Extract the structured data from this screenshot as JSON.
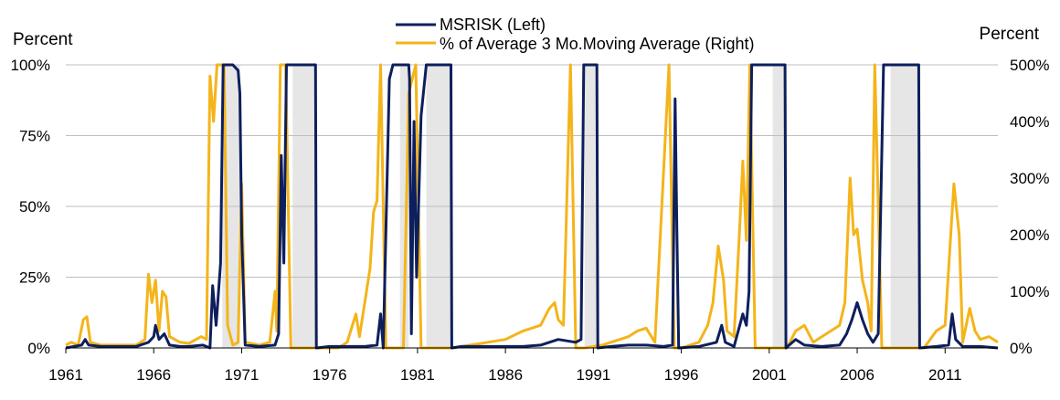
{
  "chart_data": {
    "type": "line",
    "left_axis_unit": "Percent",
    "right_axis_unit": "Percent",
    "left_ylim": [
      0,
      100
    ],
    "right_ylim": [
      0,
      500
    ],
    "left_ticks": [
      "0%",
      "25%",
      "50%",
      "75%",
      "100%"
    ],
    "right_ticks": [
      "0%",
      "100%",
      "200%",
      "300%",
      "400%",
      "500%"
    ],
    "x_range": [
      1961,
      2014
    ],
    "x_ticks": [
      "1961",
      "1966",
      "1971",
      "1976",
      "1981",
      "1986",
      "1991",
      "1996",
      "2001",
      "2006",
      "2011"
    ],
    "grid": "horizontal",
    "legend_position": "top-center",
    "recession_shading": [
      [
        1969.9,
        1970.9
      ],
      [
        1973.9,
        1975.2
      ],
      [
        1980.0,
        1980.5
      ],
      [
        1981.5,
        1982.9
      ],
      [
        1990.5,
        1991.2
      ],
      [
        2001.2,
        2001.9
      ],
      [
        2007.9,
        2009.5
      ]
    ],
    "colors": {
      "msrisk": "#0d1f5c",
      "avg": "#f4b41a",
      "shade": "#e6e6e6",
      "grid": "#bfbfbf"
    },
    "series": [
      {
        "name": "MSRISK (Left)",
        "axis": "left",
        "points": [
          [
            1961,
            0
          ],
          [
            1961.9,
            1
          ],
          [
            1962.1,
            3
          ],
          [
            1962.3,
            1
          ],
          [
            1963,
            0.5
          ],
          [
            1964,
            0.5
          ],
          [
            1965,
            0.5
          ],
          [
            1965.7,
            2
          ],
          [
            1966.0,
            4
          ],
          [
            1966.1,
            8
          ],
          [
            1966.3,
            3
          ],
          [
            1966.6,
            5
          ],
          [
            1966.9,
            1
          ],
          [
            1967.5,
            0.5
          ],
          [
            1968,
            0.5
          ],
          [
            1968.8,
            1
          ],
          [
            1969.2,
            0
          ],
          [
            1969.35,
            22
          ],
          [
            1969.55,
            8
          ],
          [
            1969.8,
            30
          ],
          [
            1969.95,
            100
          ],
          [
            1970.5,
            100
          ],
          [
            1970.8,
            98
          ],
          [
            1970.9,
            90
          ],
          [
            1971.0,
            40
          ],
          [
            1971.2,
            1
          ],
          [
            1972,
            0.5
          ],
          [
            1972.9,
            1
          ],
          [
            1973.1,
            5
          ],
          [
            1973.25,
            68
          ],
          [
            1973.4,
            30
          ],
          [
            1973.55,
            100
          ],
          [
            1974.5,
            100
          ],
          [
            1975.2,
            100
          ],
          [
            1975.25,
            0
          ],
          [
            1976,
            0.5
          ],
          [
            1977,
            0.5
          ],
          [
            1978,
            0.5
          ],
          [
            1978.7,
            1
          ],
          [
            1978.9,
            12
          ],
          [
            1979.05,
            0
          ],
          [
            1979.4,
            95
          ],
          [
            1979.6,
            100
          ],
          [
            1980.5,
            100
          ],
          [
            1980.55,
            95
          ],
          [
            1980.65,
            5
          ],
          [
            1980.8,
            80
          ],
          [
            1980.95,
            25
          ],
          [
            1981.2,
            82
          ],
          [
            1981.5,
            100
          ],
          [
            1982.9,
            100
          ],
          [
            1982.95,
            0
          ],
          [
            1983.5,
            0.5
          ],
          [
            1985,
            0.5
          ],
          [
            1987,
            0.5
          ],
          [
            1988,
            1
          ],
          [
            1989,
            3
          ],
          [
            1990.0,
            2
          ],
          [
            1990.3,
            3
          ],
          [
            1990.45,
            100
          ],
          [
            1991.2,
            100
          ],
          [
            1991.25,
            0
          ],
          [
            1992,
            0.5
          ],
          [
            1993,
            1
          ],
          [
            1994,
            1
          ],
          [
            1995,
            0.5
          ],
          [
            1995.5,
            1
          ],
          [
            1995.65,
            88
          ],
          [
            1995.75,
            40
          ],
          [
            1995.85,
            0
          ],
          [
            1997,
            0.5
          ],
          [
            1998,
            2
          ],
          [
            1998.3,
            8
          ],
          [
            1998.5,
            2
          ],
          [
            1999,
            0.5
          ],
          [
            1999.5,
            12
          ],
          [
            1999.7,
            8
          ],
          [
            1999.85,
            20
          ],
          [
            2000.0,
            100
          ],
          [
            2001.9,
            100
          ],
          [
            2001.95,
            0
          ],
          [
            2002.5,
            3
          ],
          [
            2003,
            1
          ],
          [
            2004,
            0.5
          ],
          [
            2005,
            1
          ],
          [
            2005.4,
            5
          ],
          [
            2005.7,
            10
          ],
          [
            2006.0,
            16
          ],
          [
            2006.3,
            10
          ],
          [
            2006.6,
            5
          ],
          [
            2006.9,
            2
          ],
          [
            2007.2,
            5
          ],
          [
            2007.5,
            100
          ],
          [
            2009.5,
            100
          ],
          [
            2009.55,
            0
          ],
          [
            2010.5,
            0.5
          ],
          [
            2011.2,
            1
          ],
          [
            2011.4,
            12
          ],
          [
            2011.6,
            3
          ],
          [
            2012,
            0.5
          ],
          [
            2013,
            0.5
          ],
          [
            2014,
            0
          ]
        ]
      },
      {
        "name": "% of Average 3 Mo.Moving Average (Right)",
        "axis": "right",
        "points": [
          [
            1961,
            5
          ],
          [
            1961.3,
            10
          ],
          [
            1961.7,
            5
          ],
          [
            1962.0,
            50
          ],
          [
            1962.2,
            55
          ],
          [
            1962.4,
            10
          ],
          [
            1963,
            5
          ],
          [
            1964,
            5
          ],
          [
            1965,
            5
          ],
          [
            1965.5,
            15
          ],
          [
            1965.7,
            130
          ],
          [
            1965.9,
            80
          ],
          [
            1966.1,
            120
          ],
          [
            1966.3,
            30
          ],
          [
            1966.5,
            100
          ],
          [
            1966.7,
            90
          ],
          [
            1966.9,
            20
          ],
          [
            1967.5,
            10
          ],
          [
            1968,
            8
          ],
          [
            1968.7,
            20
          ],
          [
            1969.0,
            15
          ],
          [
            1969.2,
            480
          ],
          [
            1969.4,
            400
          ],
          [
            1969.6,
            500
          ],
          [
            1970.0,
            500
          ],
          [
            1970.2,
            40
          ],
          [
            1970.5,
            5
          ],
          [
            1970.8,
            10
          ],
          [
            1971.0,
            290
          ],
          [
            1971.2,
            10
          ],
          [
            1972,
            5
          ],
          [
            1972.6,
            10
          ],
          [
            1972.9,
            100
          ],
          [
            1973.0,
            30
          ],
          [
            1973.2,
            500
          ],
          [
            1973.5,
            500
          ],
          [
            1973.8,
            0
          ],
          [
            1974.5,
            0
          ],
          [
            1976.5,
            0
          ],
          [
            1977,
            10
          ],
          [
            1977.5,
            60
          ],
          [
            1977.7,
            20
          ],
          [
            1978.3,
            140
          ],
          [
            1978.5,
            240
          ],
          [
            1978.7,
            260
          ],
          [
            1978.9,
            500
          ],
          [
            1979.2,
            0
          ],
          [
            1980.2,
            0
          ],
          [
            1980.5,
            450
          ],
          [
            1980.9,
            500
          ],
          [
            1981.2,
            0
          ],
          [
            1983,
            0
          ],
          [
            1984,
            5
          ],
          [
            1985,
            10
          ],
          [
            1986,
            15
          ],
          [
            1987,
            30
          ],
          [
            1988,
            40
          ],
          [
            1988.5,
            70
          ],
          [
            1988.8,
            80
          ],
          [
            1989,
            50
          ],
          [
            1989.3,
            40
          ],
          [
            1989.7,
            500
          ],
          [
            1990.0,
            0
          ],
          [
            1990.5,
            0
          ],
          [
            1991.5,
            5
          ],
          [
            1992,
            10
          ],
          [
            1993,
            20
          ],
          [
            1993.5,
            30
          ],
          [
            1994,
            35
          ],
          [
            1994.5,
            10
          ],
          [
            1995.3,
            500
          ],
          [
            1995.6,
            0
          ],
          [
            1996,
            0
          ],
          [
            1997,
            10
          ],
          [
            1997.5,
            40
          ],
          [
            1997.8,
            80
          ],
          [
            1998.1,
            180
          ],
          [
            1998.4,
            120
          ],
          [
            1998.6,
            30
          ],
          [
            1999.0,
            20
          ],
          [
            1999.3,
            200
          ],
          [
            1999.5,
            330
          ],
          [
            1999.7,
            190
          ],
          [
            1999.9,
            500
          ],
          [
            2000.2,
            0
          ],
          [
            2002,
            0
          ],
          [
            2002.5,
            30
          ],
          [
            2003,
            40
          ],
          [
            2003.5,
            10
          ],
          [
            2004.5,
            30
          ],
          [
            2005,
            40
          ],
          [
            2005.3,
            80
          ],
          [
            2005.6,
            300
          ],
          [
            2005.8,
            200
          ],
          [
            2006.0,
            210
          ],
          [
            2006.3,
            120
          ],
          [
            2006.6,
            80
          ],
          [
            2006.8,
            30
          ],
          [
            2007.0,
            500
          ],
          [
            2007.4,
            0
          ],
          [
            2009.8,
            0
          ],
          [
            2010.5,
            30
          ],
          [
            2011.0,
            40
          ],
          [
            2011.5,
            290
          ],
          [
            2011.8,
            200
          ],
          [
            2012.0,
            10
          ],
          [
            2012.4,
            70
          ],
          [
            2012.7,
            30
          ],
          [
            2013,
            15
          ],
          [
            2013.5,
            20
          ],
          [
            2014,
            10
          ]
        ]
      }
    ]
  }
}
